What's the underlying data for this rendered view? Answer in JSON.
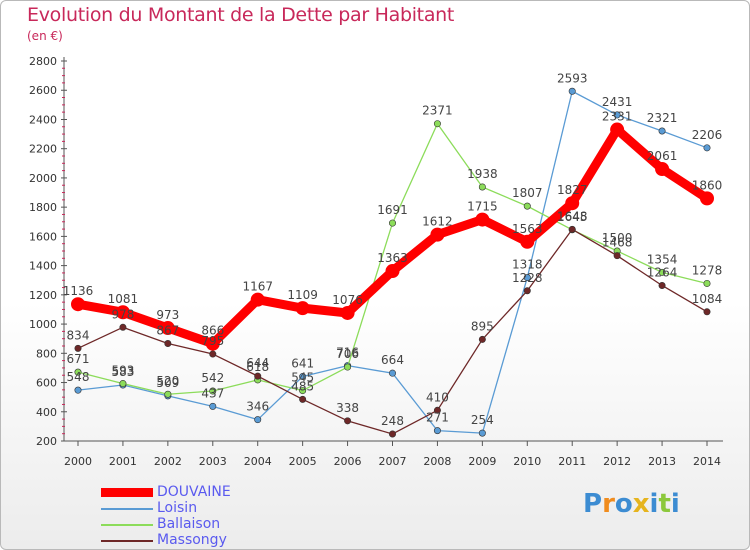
{
  "title": "Evolution du Montant de la Dette par Habitant",
  "subtitle": "(en €)",
  "logo_text": "Proxiti",
  "colors": {
    "title": "#c8285a",
    "DOUVAINE": "#ff0000",
    "Loisin": "#5a9bd4",
    "Ballaison": "#8cdc5a",
    "Massongy": "#6e2828",
    "legend_text": "#5a5aef"
  },
  "chart_data": {
    "type": "line",
    "title": "Evolution du Montant de la Dette par Habitant",
    "subtitle": "(en €)",
    "xlabel": "",
    "ylabel": "",
    "ylim": [
      200,
      2800
    ],
    "yticks": [
      200,
      400,
      600,
      800,
      1000,
      1200,
      1400,
      1600,
      1800,
      2000,
      2200,
      2400,
      2600,
      2800
    ],
    "grid": false,
    "legend_position": "bottom-left",
    "x": [
      "2000",
      "2001",
      "2002",
      "2003",
      "2004",
      "2005",
      "2006",
      "2007",
      "2008",
      "2009",
      "2010",
      "2011",
      "2012",
      "2013",
      "2014"
    ],
    "series": [
      {
        "name": "DOUVAINE",
        "values": [
          1136,
          1081,
          973,
          866,
          1167,
          1109,
          1076,
          1363,
          1612,
          1715,
          1563,
          1827,
          2331,
          2061,
          1860
        ]
      },
      {
        "name": "Loisin",
        "values": [
          548,
          583,
          509,
          437,
          346,
          641,
          716,
          664,
          271,
          254,
          1318,
          2593,
          2431,
          2321,
          2206
        ]
      },
      {
        "name": "Ballaison",
        "values": [
          671,
          593,
          520,
          542,
          618,
          545,
          706,
          1691,
          2371,
          1938,
          1807,
          1645,
          1500,
          1354,
          1278
        ]
      },
      {
        "name": "Massongy",
        "values": [
          834,
          978,
          867,
          795,
          644,
          485,
          338,
          248,
          410,
          895,
          1228,
          1648,
          1468,
          1264,
          1084
        ]
      }
    ]
  }
}
